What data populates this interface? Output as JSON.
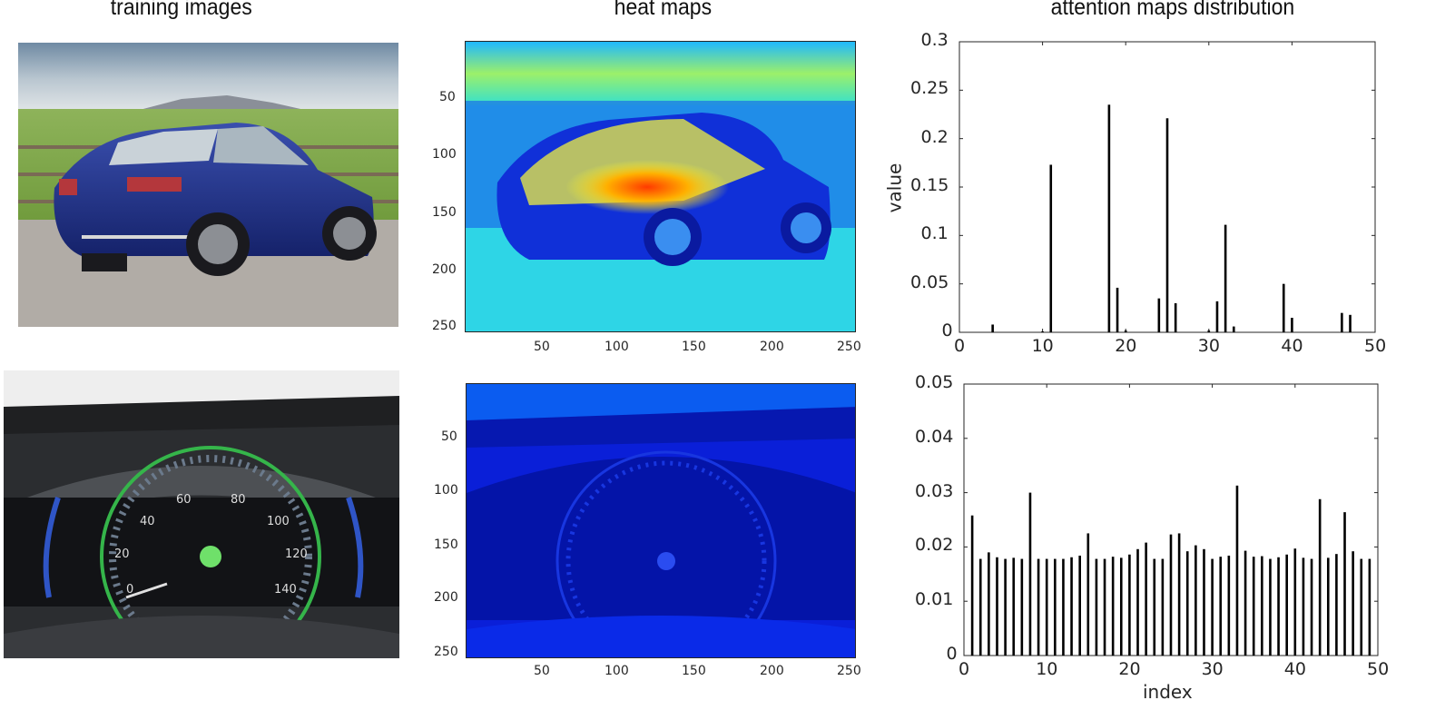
{
  "titles": {
    "training": "training images",
    "heat": "heat maps",
    "attention": "attention maps distribution"
  },
  "images": {
    "top_photo": "rear three-quarter view of blue sedan by a vineyard fence",
    "bottom_photo": "car instrument cluster with speedometer behind steering wheel",
    "speedo_labels": [
      "0",
      "20",
      "40",
      "60",
      "80",
      "100",
      "120",
      "140"
    ]
  },
  "heatmaps": {
    "x_ticks": [
      "50",
      "100",
      "150",
      "200",
      "250"
    ],
    "y_ticks": [
      "50",
      "100",
      "150",
      "200",
      "250"
    ],
    "xlim": [
      0,
      256
    ],
    "ylim": [
      0,
      256
    ],
    "colormap": "jet"
  },
  "chart_data": [
    {
      "type": "bar",
      "title": "attention maps distribution",
      "xlabel": "",
      "ylabel": "value",
      "xlim": [
        0,
        50
      ],
      "ylim": [
        0,
        0.3
      ],
      "x_ticks": [
        "0",
        "10",
        "20",
        "30",
        "40",
        "50"
      ],
      "y_ticks": [
        "0",
        "0.05",
        "0.1",
        "0.15",
        "0.2",
        "0.25",
        "0.3"
      ],
      "grid": false,
      "x": [
        4,
        10,
        11,
        18,
        19,
        20,
        24,
        25,
        26,
        30,
        31,
        32,
        33,
        39,
        40,
        46,
        47
      ],
      "values": [
        0.008,
        0.001,
        0.173,
        0.235,
        0.046,
        0.002,
        0.035,
        0.221,
        0.03,
        0.002,
        0.032,
        0.111,
        0.006,
        0.05,
        0.015,
        0.02,
        0.018
      ],
      "bar_color": "#000000"
    },
    {
      "type": "bar",
      "title": "",
      "xlabel": "index",
      "ylabel": "",
      "xlim": [
        0,
        50
      ],
      "ylim": [
        0,
        0.05
      ],
      "x_ticks": [
        "0",
        "10",
        "20",
        "30",
        "40",
        "50"
      ],
      "y_ticks": [
        "0",
        "0.01",
        "0.02",
        "0.03",
        "0.04",
        "0.05"
      ],
      "grid": false,
      "x": [
        1,
        2,
        3,
        4,
        5,
        6,
        7,
        8,
        9,
        10,
        11,
        12,
        13,
        14,
        15,
        16,
        17,
        18,
        19,
        20,
        21,
        22,
        23,
        24,
        25,
        26,
        27,
        28,
        29,
        30,
        31,
        32,
        33,
        34,
        35,
        36,
        37,
        38,
        39,
        40,
        41,
        42,
        43,
        44,
        45,
        46,
        47,
        48,
        49
      ],
      "values": [
        0.0258,
        0.0178,
        0.019,
        0.0181,
        0.0178,
        0.018,
        0.0178,
        0.03,
        0.0178,
        0.0178,
        0.0178,
        0.0178,
        0.0181,
        0.0184,
        0.0225,
        0.0178,
        0.0178,
        0.0182,
        0.018,
        0.0186,
        0.0196,
        0.0208,
        0.0178,
        0.0178,
        0.0223,
        0.0225,
        0.0192,
        0.0203,
        0.0196,
        0.0178,
        0.0182,
        0.0184,
        0.0313,
        0.0193,
        0.0182,
        0.0183,
        0.0178,
        0.0181,
        0.0186,
        0.0197,
        0.018,
        0.0178,
        0.0288,
        0.018,
        0.0187,
        0.0264,
        0.0192,
        0.0178,
        0.0178
      ],
      "bar_color": "#000000"
    }
  ]
}
